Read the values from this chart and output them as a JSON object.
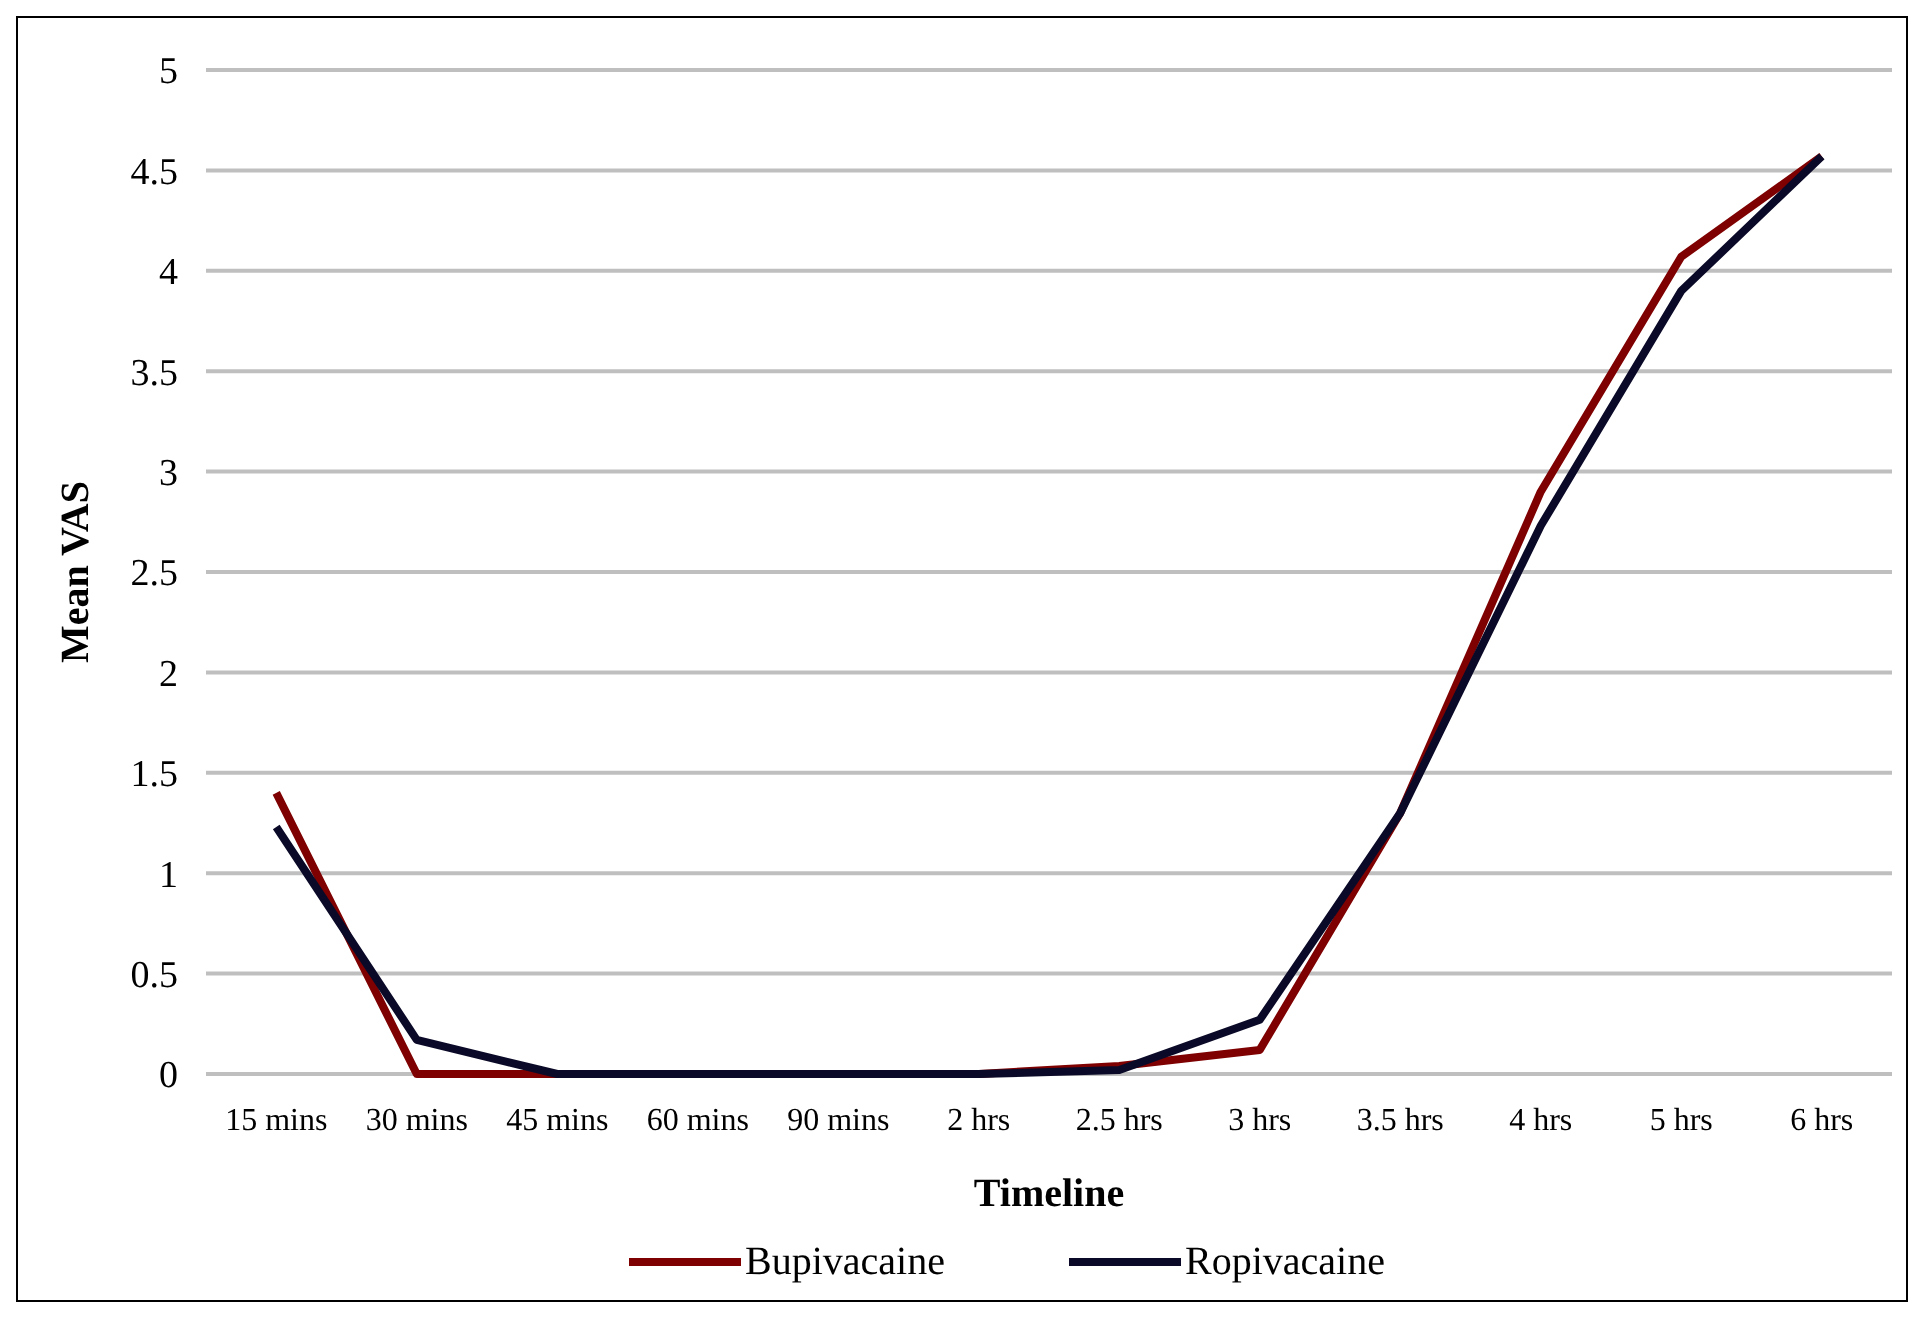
{
  "chart_data": {
    "type": "line",
    "xlabel": "Timeline",
    "ylabel": "Mean VAS",
    "categories": [
      "15 mins",
      "30 mins",
      "45 mins",
      "60 mins",
      "90 mins",
      "2 hrs",
      "2.5 hrs",
      "3 hrs",
      "3.5 hrs",
      "4 hrs",
      "5 hrs",
      "6 hrs"
    ],
    "series": [
      {
        "name": "Bupivacaine",
        "color": "#7f0000",
        "values": [
          1.4,
          0,
          0,
          0,
          0,
          0,
          0.04,
          0.12,
          1.3,
          2.9,
          4.07,
          4.57
        ]
      },
      {
        "name": "Ropivacaine",
        "color": "#0a0a28",
        "values": [
          1.23,
          0.17,
          0,
          0,
          0,
          0,
          0.02,
          0.27,
          1.3,
          2.73,
          3.9,
          4.57
        ]
      }
    ],
    "ylim": [
      0,
      5
    ],
    "yticks": [
      0,
      0.5,
      1,
      1.5,
      2,
      2.5,
      3,
      3.5,
      4,
      4.5,
      5
    ],
    "grid": "y",
    "legend": "bottom",
    "marker": "none",
    "line_style": "solid"
  }
}
